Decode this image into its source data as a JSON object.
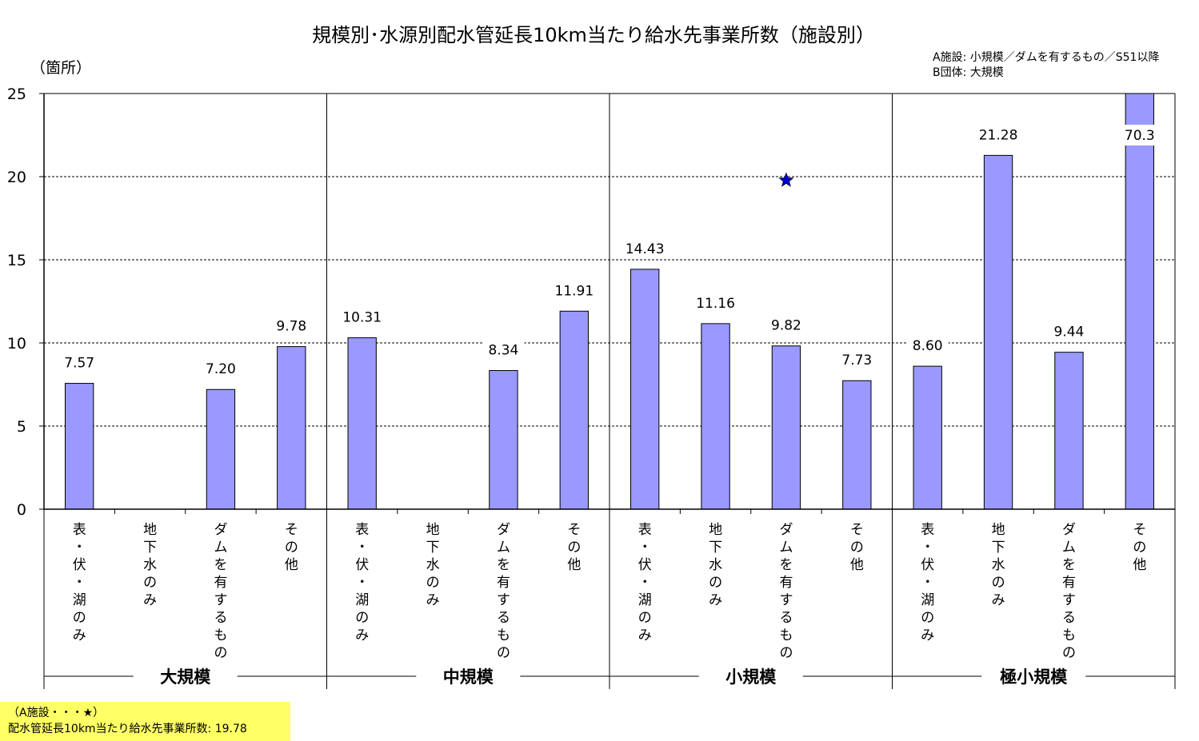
{
  "chart_data": {
    "type": "bar",
    "title": "規模別･水源別配水管延長10km当たり給水先事業所数（施設別）",
    "ylabel": "（箇所）",
    "ylim": [
      0,
      25
    ],
    "yticks": [
      "0",
      "5",
      "10",
      "15",
      "20",
      "25"
    ],
    "grid": true,
    "legend_position": "top-right",
    "legend": [
      "A施設: 小規模／ダムを有するもの／S51以降",
      "B団体: 大規模"
    ],
    "bar_color": "#9999ff",
    "groups": [
      {
        "label": "大規模",
        "categories": [
          "表・伏・湖のみ",
          "地下水のみ",
          "ダムを有するもの",
          "その他"
        ],
        "values": [
          7.57,
          null,
          7.2,
          9.78
        ],
        "value_labels": [
          "7.57",
          "",
          "7.20",
          "9.78"
        ]
      },
      {
        "label": "中規模",
        "categories": [
          "表・伏・湖のみ",
          "地下水のみ",
          "ダムを有するもの",
          "その他"
        ],
        "values": [
          10.31,
          null,
          8.34,
          11.91
        ],
        "value_labels": [
          "10.31",
          "",
          "8.34",
          "11.91"
        ]
      },
      {
        "label": "小規模",
        "categories": [
          "表・伏・湖のみ",
          "地下水のみ",
          "ダムを有するもの",
          "その他"
        ],
        "values": [
          14.43,
          11.16,
          9.82,
          7.73
        ],
        "value_labels": [
          "14.43",
          "11.16",
          "9.82",
          "7.73"
        ]
      },
      {
        "label": "極小規模",
        "categories": [
          "表・伏・湖のみ",
          "地下水のみ",
          "ダムを有するもの",
          "その他"
        ],
        "values": [
          8.6,
          21.28,
          9.44,
          70.3
        ],
        "value_labels": [
          "8.60",
          "21.28",
          "9.44",
          "70.3"
        ]
      }
    ],
    "marker": {
      "symbol": "star",
      "color": "#0000cc",
      "group_index": 2,
      "category_index": 2,
      "value": 19.78
    }
  },
  "note": {
    "line1": "（A施設・・・★）",
    "line2": "配水管延長10km当たり給水先事業所数: 19.78"
  }
}
